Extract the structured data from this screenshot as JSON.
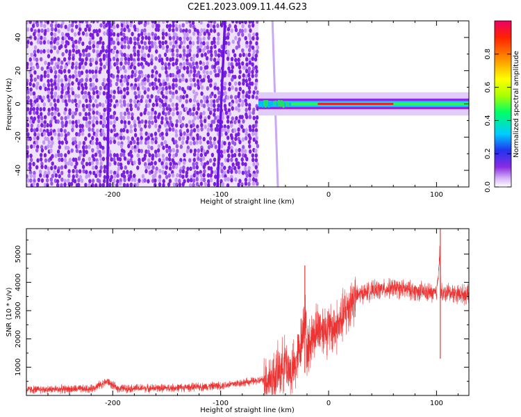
{
  "title": "C2E1.2023.009.11.44.G23",
  "chart_data": [
    {
      "type": "heatmap",
      "xlabel": "Height of straight line (km)",
      "ylabel": "Frequency (Hz)",
      "xlim": [
        -280,
        130
      ],
      "ylim": [
        -50,
        50
      ],
      "x_ticks": [
        -200,
        -100,
        0,
        100
      ],
      "y_ticks": [
        -40,
        -20,
        0,
        20,
        40
      ],
      "grid": false,
      "features": {
        "noise_region_x": [
          -280,
          -65
        ],
        "signal_band": {
          "x_start": -65,
          "x_end": 130,
          "center_hz": 0,
          "half_width_hz": 2
        },
        "streaks": [
          {
            "x_at_top": -203,
            "x_at_bottom": -205
          },
          {
            "x_at_top": -96,
            "x_at_bottom": -103
          },
          {
            "x_at_top": -52,
            "x_at_bottom": -47
          }
        ]
      }
    },
    {
      "type": "line",
      "xlabel": "Height of straight line (km)",
      "ylabel": "SNR (10 * v/v)",
      "xlim": [
        -280,
        130
      ],
      "ylim": [
        0,
        5900
      ],
      "x_ticks": [
        -200,
        -100,
        0,
        100
      ],
      "y_ticks": [
        1000,
        2000,
        3000,
        4000,
        5000
      ],
      "grid": false,
      "color": "#ee3333",
      "series": [
        {
          "x": [
            -280,
            -250,
            -220,
            -205,
            -200,
            -195,
            -150,
            -120,
            -100,
            -80,
            -60,
            -50,
            -45,
            -40,
            -35,
            -30,
            -25,
            -22,
            -20,
            -15,
            -10,
            -5,
            0,
            5,
            10,
            15,
            20,
            25,
            30,
            40,
            50,
            60,
            70,
            80,
            90,
            100,
            103,
            104,
            106,
            110,
            120,
            130
          ],
          "values": [
            200,
            220,
            230,
            500,
            350,
            250,
            260,
            300,
            350,
            450,
            550,
            650,
            900,
            1200,
            800,
            1100,
            2000,
            3000,
            1500,
            2100,
            2400,
            2400,
            2300,
            2400,
            2500,
            2900,
            3300,
            3500,
            3600,
            3700,
            3750,
            3800,
            3750,
            3700,
            3650,
            3600,
            5000,
            3700,
            3550,
            3650,
            3600,
            3550
          ]
        }
      ]
    },
    {
      "type": "colorbar",
      "label": "Normalized spectral amplitude",
      "range": [
        0,
        1
      ],
      "ticks": [
        0.0,
        0.2,
        0.4,
        0.6,
        0.8
      ]
    }
  ]
}
